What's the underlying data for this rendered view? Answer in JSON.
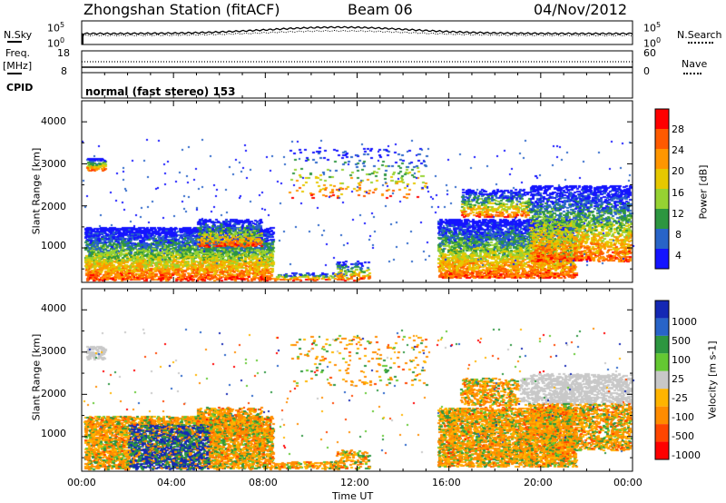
{
  "header": {
    "station": "Zhongshan Station (fitACF)",
    "beam": "Beam 06",
    "date": "04/Nov/2012"
  },
  "top_panels": {
    "nsky_label": "N.Sky",
    "nsky_ticks": [
      "10^5",
      "10^0"
    ],
    "nsearch_label": "N.Search",
    "nsearch_ticks": [
      "10^5",
      "10^0"
    ],
    "freq_label_1": "Freq.",
    "freq_label_2": "[MHz]",
    "freq_ticks": [
      "18",
      "8"
    ],
    "nave_label": "Nave",
    "nave_ticks": [
      "60",
      "0"
    ],
    "cpid_label": "CPID",
    "cpid_value": "normal (fast stereo) 153"
  },
  "chart_data": [
    {
      "type": "heatmap",
      "panel": "power",
      "ylabel": "Slant Range [km]",
      "y_ticks": [
        "4000",
        "3000",
        "2000",
        "1000"
      ],
      "ylim": [
        180,
        4500
      ],
      "colorbar": {
        "label": "Power [dB]",
        "ticks": [
          "28",
          "24",
          "20",
          "16",
          "12",
          "8",
          "4"
        ],
        "colors": [
          "#ff0000",
          "#ff5a00",
          "#ff9600",
          "#e6c800",
          "#96d232",
          "#2d9640",
          "#2864c8",
          "#1414ff"
        ]
      }
    },
    {
      "type": "heatmap",
      "panel": "velocity",
      "ylabel": "Slant Range [km]",
      "y_ticks": [
        "4000",
        "3000",
        "2000",
        "1000"
      ],
      "ylim": [
        180,
        4500
      ],
      "colorbar": {
        "label": "Velocity [m s-1]",
        "ticks": [
          "1000",
          "500",
          "100",
          "25",
          "-25",
          "-100",
          "-500",
          "-1000"
        ],
        "colors": [
          "#1428b4",
          "#2864c8",
          "#2d9640",
          "#64c832",
          "#c8c8c8",
          "#ffb400",
          "#ff8c00",
          "#ff4600",
          "#ff0000"
        ]
      }
    }
  ],
  "x_axis": {
    "label": "Time UT",
    "ticks": [
      "00:00",
      "04:00",
      "08:00",
      "12:00",
      "16:00",
      "20:00",
      "00:00"
    ]
  }
}
